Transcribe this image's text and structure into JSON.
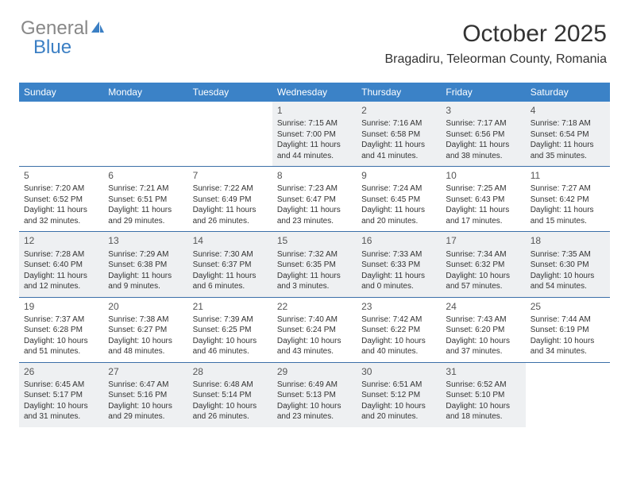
{
  "logo": {
    "text1": "General",
    "text2": "Blue"
  },
  "header": {
    "month_title": "October 2025",
    "location": "Bragadiru, Teleorman County, Romania"
  },
  "day_names": [
    "Sunday",
    "Monday",
    "Tuesday",
    "Wednesday",
    "Thursday",
    "Friday",
    "Saturday"
  ],
  "colors": {
    "header_bg": "#3b82c7",
    "header_text": "#ffffff",
    "shaded_bg": "#eef0f2",
    "rule": "#3b6fa8",
    "logo_blue": "#3b7fc4"
  },
  "weeks": [
    [
      {
        "blank": true
      },
      {
        "blank": true
      },
      {
        "blank": true
      },
      {
        "day": "1",
        "sunrise": "Sunrise: 7:15 AM",
        "sunset": "Sunset: 7:00 PM",
        "dl1": "Daylight: 11 hours",
        "dl2": "and 44 minutes."
      },
      {
        "day": "2",
        "sunrise": "Sunrise: 7:16 AM",
        "sunset": "Sunset: 6:58 PM",
        "dl1": "Daylight: 11 hours",
        "dl2": "and 41 minutes."
      },
      {
        "day": "3",
        "sunrise": "Sunrise: 7:17 AM",
        "sunset": "Sunset: 6:56 PM",
        "dl1": "Daylight: 11 hours",
        "dl2": "and 38 minutes."
      },
      {
        "day": "4",
        "sunrise": "Sunrise: 7:18 AM",
        "sunset": "Sunset: 6:54 PM",
        "dl1": "Daylight: 11 hours",
        "dl2": "and 35 minutes."
      }
    ],
    [
      {
        "day": "5",
        "sunrise": "Sunrise: 7:20 AM",
        "sunset": "Sunset: 6:52 PM",
        "dl1": "Daylight: 11 hours",
        "dl2": "and 32 minutes."
      },
      {
        "day": "6",
        "sunrise": "Sunrise: 7:21 AM",
        "sunset": "Sunset: 6:51 PM",
        "dl1": "Daylight: 11 hours",
        "dl2": "and 29 minutes."
      },
      {
        "day": "7",
        "sunrise": "Sunrise: 7:22 AM",
        "sunset": "Sunset: 6:49 PM",
        "dl1": "Daylight: 11 hours",
        "dl2": "and 26 minutes."
      },
      {
        "day": "8",
        "sunrise": "Sunrise: 7:23 AM",
        "sunset": "Sunset: 6:47 PM",
        "dl1": "Daylight: 11 hours",
        "dl2": "and 23 minutes."
      },
      {
        "day": "9",
        "sunrise": "Sunrise: 7:24 AM",
        "sunset": "Sunset: 6:45 PM",
        "dl1": "Daylight: 11 hours",
        "dl2": "and 20 minutes."
      },
      {
        "day": "10",
        "sunrise": "Sunrise: 7:25 AM",
        "sunset": "Sunset: 6:43 PM",
        "dl1": "Daylight: 11 hours",
        "dl2": "and 17 minutes."
      },
      {
        "day": "11",
        "sunrise": "Sunrise: 7:27 AM",
        "sunset": "Sunset: 6:42 PM",
        "dl1": "Daylight: 11 hours",
        "dl2": "and 15 minutes."
      }
    ],
    [
      {
        "day": "12",
        "sunrise": "Sunrise: 7:28 AM",
        "sunset": "Sunset: 6:40 PM",
        "dl1": "Daylight: 11 hours",
        "dl2": "and 12 minutes."
      },
      {
        "day": "13",
        "sunrise": "Sunrise: 7:29 AM",
        "sunset": "Sunset: 6:38 PM",
        "dl1": "Daylight: 11 hours",
        "dl2": "and 9 minutes."
      },
      {
        "day": "14",
        "sunrise": "Sunrise: 7:30 AM",
        "sunset": "Sunset: 6:37 PM",
        "dl1": "Daylight: 11 hours",
        "dl2": "and 6 minutes."
      },
      {
        "day": "15",
        "sunrise": "Sunrise: 7:32 AM",
        "sunset": "Sunset: 6:35 PM",
        "dl1": "Daylight: 11 hours",
        "dl2": "and 3 minutes."
      },
      {
        "day": "16",
        "sunrise": "Sunrise: 7:33 AM",
        "sunset": "Sunset: 6:33 PM",
        "dl1": "Daylight: 11 hours",
        "dl2": "and 0 minutes."
      },
      {
        "day": "17",
        "sunrise": "Sunrise: 7:34 AM",
        "sunset": "Sunset: 6:32 PM",
        "dl1": "Daylight: 10 hours",
        "dl2": "and 57 minutes."
      },
      {
        "day": "18",
        "sunrise": "Sunrise: 7:35 AM",
        "sunset": "Sunset: 6:30 PM",
        "dl1": "Daylight: 10 hours",
        "dl2": "and 54 minutes."
      }
    ],
    [
      {
        "day": "19",
        "sunrise": "Sunrise: 7:37 AM",
        "sunset": "Sunset: 6:28 PM",
        "dl1": "Daylight: 10 hours",
        "dl2": "and 51 minutes."
      },
      {
        "day": "20",
        "sunrise": "Sunrise: 7:38 AM",
        "sunset": "Sunset: 6:27 PM",
        "dl1": "Daylight: 10 hours",
        "dl2": "and 48 minutes."
      },
      {
        "day": "21",
        "sunrise": "Sunrise: 7:39 AM",
        "sunset": "Sunset: 6:25 PM",
        "dl1": "Daylight: 10 hours",
        "dl2": "and 46 minutes."
      },
      {
        "day": "22",
        "sunrise": "Sunrise: 7:40 AM",
        "sunset": "Sunset: 6:24 PM",
        "dl1": "Daylight: 10 hours",
        "dl2": "and 43 minutes."
      },
      {
        "day": "23",
        "sunrise": "Sunrise: 7:42 AM",
        "sunset": "Sunset: 6:22 PM",
        "dl1": "Daylight: 10 hours",
        "dl2": "and 40 minutes."
      },
      {
        "day": "24",
        "sunrise": "Sunrise: 7:43 AM",
        "sunset": "Sunset: 6:20 PM",
        "dl1": "Daylight: 10 hours",
        "dl2": "and 37 minutes."
      },
      {
        "day": "25",
        "sunrise": "Sunrise: 7:44 AM",
        "sunset": "Sunset: 6:19 PM",
        "dl1": "Daylight: 10 hours",
        "dl2": "and 34 minutes."
      }
    ],
    [
      {
        "day": "26",
        "sunrise": "Sunrise: 6:45 AM",
        "sunset": "Sunset: 5:17 PM",
        "dl1": "Daylight: 10 hours",
        "dl2": "and 31 minutes."
      },
      {
        "day": "27",
        "sunrise": "Sunrise: 6:47 AM",
        "sunset": "Sunset: 5:16 PM",
        "dl1": "Daylight: 10 hours",
        "dl2": "and 29 minutes."
      },
      {
        "day": "28",
        "sunrise": "Sunrise: 6:48 AM",
        "sunset": "Sunset: 5:14 PM",
        "dl1": "Daylight: 10 hours",
        "dl2": "and 26 minutes."
      },
      {
        "day": "29",
        "sunrise": "Sunrise: 6:49 AM",
        "sunset": "Sunset: 5:13 PM",
        "dl1": "Daylight: 10 hours",
        "dl2": "and 23 minutes."
      },
      {
        "day": "30",
        "sunrise": "Sunrise: 6:51 AM",
        "sunset": "Sunset: 5:12 PM",
        "dl1": "Daylight: 10 hours",
        "dl2": "and 20 minutes."
      },
      {
        "day": "31",
        "sunrise": "Sunrise: 6:52 AM",
        "sunset": "Sunset: 5:10 PM",
        "dl1": "Daylight: 10 hours",
        "dl2": "and 18 minutes."
      },
      {
        "blank": true
      }
    ]
  ]
}
